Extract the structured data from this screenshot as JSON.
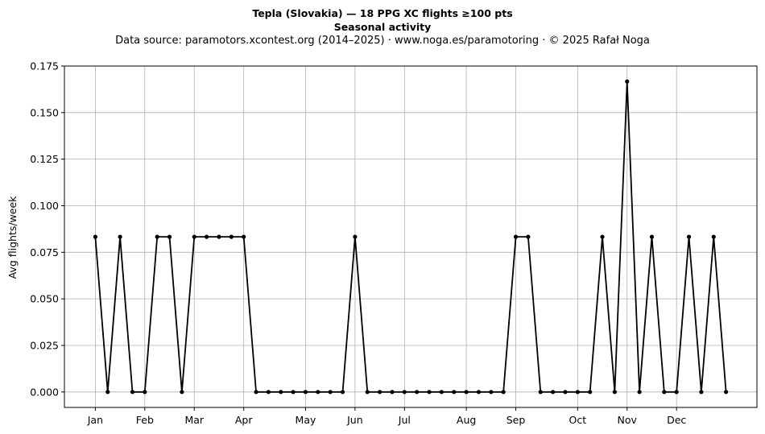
{
  "title_line1": "Tepla (Slovakia)  —  18 PPG XC flights ≥100 pts",
  "title_line2": "Seasonal activity",
  "subtitle": "Data source: paramotors.xcontest.org (2014–2025)  ·  www.noga.es/paramotoring  ·  © 2025 Rafał Noga",
  "chart_data": {
    "type": "line",
    "title": "Tepla (Slovakia)  —  18 PPG XC flights ≥100 pts",
    "subtitle": "Seasonal activity",
    "xlabel": "",
    "ylabel": "Avg flights/week",
    "xlim": [
      -2.5,
      53.5
    ],
    "ylim": [
      -0.0083,
      0.175
    ],
    "grid": true,
    "line_color": "#000000",
    "x_ticks": [
      {
        "label": "Jan",
        "x": 0
      },
      {
        "label": "Feb",
        "x": 4
      },
      {
        "label": "Mar",
        "x": 8
      },
      {
        "label": "Apr",
        "x": 12
      },
      {
        "label": "May",
        "x": 17
      },
      {
        "label": "Jun",
        "x": 21
      },
      {
        "label": "Jul",
        "x": 25
      },
      {
        "label": "Aug",
        "x": 30
      },
      {
        "label": "Sep",
        "x": 34
      },
      {
        "label": "Oct",
        "x": 39
      },
      {
        "label": "Nov",
        "x": 43
      },
      {
        "label": "Dec",
        "x": 47
      }
    ],
    "y_ticks": [
      "0.000",
      "0.025",
      "0.050",
      "0.075",
      "0.100",
      "0.125",
      "0.150",
      "0.175"
    ],
    "series": [
      {
        "x": [
          0,
          1,
          2,
          3,
          4,
          5,
          6,
          7,
          8,
          9,
          10,
          11,
          12,
          13,
          14,
          15,
          16,
          17,
          18,
          19,
          20,
          21,
          22,
          23,
          24,
          25,
          26,
          27,
          28,
          29,
          30,
          31,
          32,
          33,
          34,
          35,
          36,
          37,
          38,
          39,
          40,
          41,
          42,
          43,
          44,
          45,
          46,
          47,
          48,
          49,
          50,
          51
        ],
        "values": [
          0.0833,
          0,
          0.0833,
          0,
          0,
          0.0833,
          0.0833,
          0,
          0.0833,
          0.0833,
          0.0833,
          0.0833,
          0.0833,
          0,
          0,
          0,
          0,
          0,
          0,
          0,
          0,
          0.0833,
          0,
          0,
          0,
          0,
          0,
          0,
          0,
          0,
          0,
          0,
          0,
          0,
          0.0833,
          0.0833,
          0,
          0,
          0,
          0,
          0,
          0.0833,
          0,
          0.1667,
          0,
          0.0833,
          0,
          0,
          0.0833,
          0,
          0.0833,
          0
        ]
      }
    ]
  }
}
